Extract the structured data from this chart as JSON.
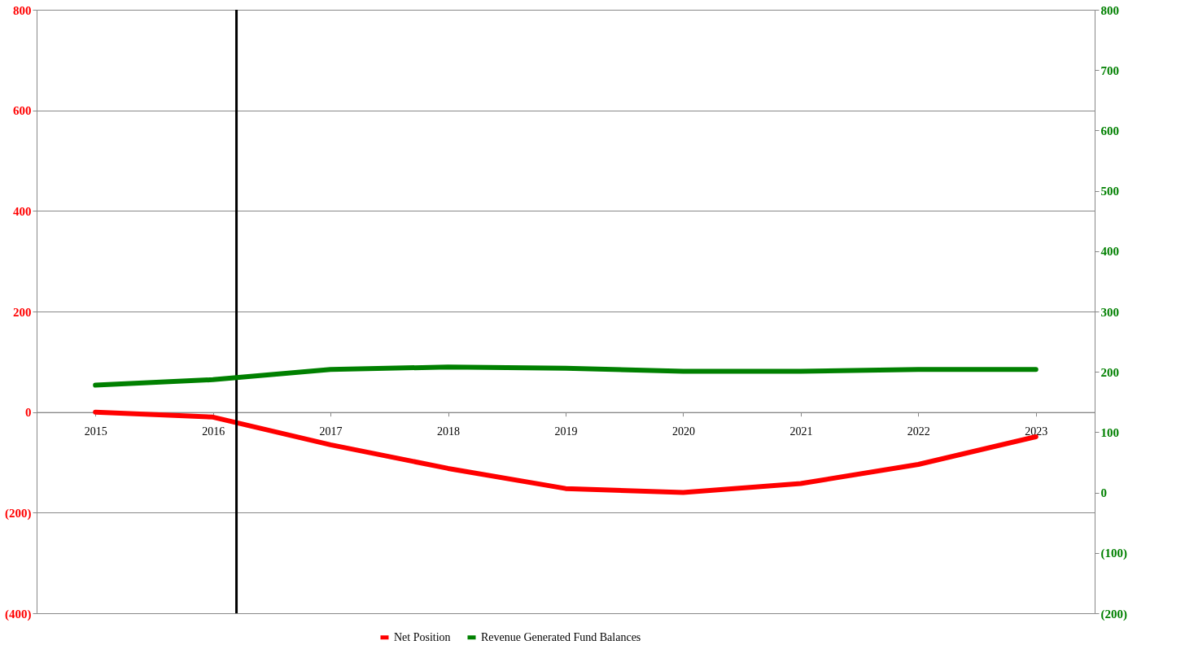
{
  "chart_data": {
    "type": "line",
    "x": [
      2015,
      2016,
      2017,
      2018,
      2019,
      2020,
      2021,
      2022,
      2023
    ],
    "xlim": [
      2014.5,
      2023.5
    ],
    "xticks": [
      2015,
      2016,
      2017,
      2018,
      2019,
      2020,
      2021,
      2022,
      2023
    ],
    "series": [
      {
        "name": "Net Position",
        "color": "#ff0000",
        "values": [
          0,
          -10,
          -65,
          -112,
          -152,
          -160,
          -142,
          -104,
          -49
        ]
      },
      {
        "name": "Revenue Generated Fund Balances",
        "color": "#008000",
        "axis": "y2",
        "values": [
          178,
          187,
          204,
          208,
          206,
          201,
          201,
          204,
          204
        ]
      }
    ],
    "ylim": [
      -400,
      800
    ],
    "yticks": [
      {
        "value": -400,
        "label": "(400)"
      },
      {
        "value": -200,
        "label": "(200)"
      },
      0,
      200,
      400,
      600,
      800
    ],
    "y2lim": [
      -200,
      800
    ],
    "y2ticks": [
      {
        "value": -200,
        "label": "(200)"
      },
      {
        "value": -100,
        "label": "(100)"
      },
      0,
      100,
      200,
      300,
      400,
      500,
      600,
      700,
      800
    ],
    "ref_lines": [
      {
        "axis": "x",
        "value": 2016.2,
        "color": "#000000"
      }
    ],
    "grid": "y",
    "legend": "bottom",
    "line_style": "solid",
    "marker": "none"
  }
}
